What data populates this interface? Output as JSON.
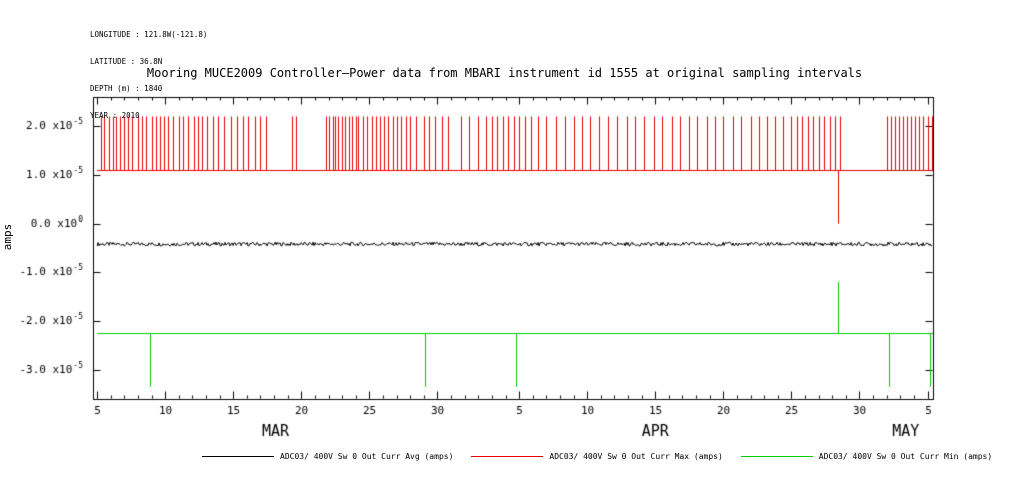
{
  "header_info": {
    "lines": [
      "LONGITUDE : 121.8W(-121.8)",
      "LATITUDE : 36.8N",
      "DEPTH (m) : 1840",
      "YEAR : 2010"
    ]
  },
  "title": "Mooring MUCE2009 Controller—Power data from MBARI instrument id 1555 at original sampling intervals",
  "chart_data": {
    "type": "line",
    "title": "Mooring MUCE2009 Controller—Power data from MBARI instrument id 1555 at original sampling intervals",
    "ylabel": "amps",
    "grid": false,
    "legend_position": "bottom",
    "ylim": [
      -3.6e-05,
      2.6e-05
    ],
    "xlim_days": [
      -0.3,
      61.4
    ],
    "x_unit": "days since Mar 5, 2010",
    "minor_tick_interval_days": 1,
    "yticks": [
      {
        "value": 2e-05,
        "mantissa": "2.0 x10",
        "exp": "-5"
      },
      {
        "value": 1e-05,
        "mantissa": "1.0 x10",
        "exp": "-5"
      },
      {
        "value": 0.0,
        "mantissa": "0.0 x10",
        "exp": "0"
      },
      {
        "value": -1e-05,
        "mantissa": "-1.0 x10",
        "exp": "-5"
      },
      {
        "value": -2e-05,
        "mantissa": "-2.0 x10",
        "exp": "-5"
      },
      {
        "value": -3e-05,
        "mantissa": "-3.0 x10",
        "exp": "-5"
      }
    ],
    "xticks": [
      {
        "day": 0,
        "label": "5"
      },
      {
        "day": 5,
        "label": "10"
      },
      {
        "day": 10,
        "label": "15"
      },
      {
        "day": 15,
        "label": "20"
      },
      {
        "day": 20,
        "label": "25"
      },
      {
        "day": 25,
        "label": "30"
      },
      {
        "day": 31,
        "label": "5"
      },
      {
        "day": 36,
        "label": "10"
      },
      {
        "day": 41,
        "label": "15"
      },
      {
        "day": 46,
        "label": "20"
      },
      {
        "day": 51,
        "label": "25"
      },
      {
        "day": 56,
        "label": "30"
      },
      {
        "day": 61,
        "label": "5"
      }
    ],
    "month_labels": [
      {
        "day": 13.1,
        "label": "MAR"
      },
      {
        "day": 41.0,
        "label": "APR"
      },
      {
        "day": 59.4,
        "label": "MAY"
      }
    ],
    "series": [
      {
        "name": "ADC03/ 400V Sw 0 Out Curr Avg (amps)",
        "color": "#000000",
        "style": "noisy-constant",
        "baseline": -4.2e-06,
        "noise_amplitude": 4e-07
      },
      {
        "name": "ADC03/ 400V Sw 0 Out Curr Max (amps)",
        "color": "#e60000",
        "style": "baseline-spikes",
        "baseline": 1.1e-05,
        "spike_value": 2.2e-05,
        "spike_days": [
          0.3,
          0.5,
          0.9,
          1.2,
          1.4,
          1.7,
          2.0,
          2.3,
          2.6,
          3.0,
          3.3,
          3.6,
          4.0,
          4.3,
          4.6,
          4.9,
          5.2,
          5.6,
          6.0,
          6.3,
          6.7,
          7.1,
          7.4,
          7.7,
          8.1,
          8.5,
          8.9,
          9.3,
          9.8,
          10.3,
          10.7,
          11.1,
          11.6,
          12.0,
          12.4,
          14.3,
          14.6,
          16.8,
          17.0,
          17.3,
          17.5,
          17.7,
          18.0,
          18.2,
          18.5,
          18.7,
          19.0,
          19.2,
          19.5,
          19.8,
          20.2,
          20.5,
          20.8,
          21.1,
          21.4,
          21.7,
          22.0,
          22.3,
          22.7,
          23.0,
          23.4,
          24.0,
          24.4,
          24.8,
          25.3,
          25.8,
          26.7,
          27.3,
          28.0,
          28.6,
          29.0,
          29.4,
          29.8,
          30.2,
          30.6,
          31.0,
          31.4,
          31.9,
          32.4,
          33.0,
          33.7,
          34.4,
          35.0,
          35.6,
          36.2,
          36.9,
          37.5,
          38.2,
          38.9,
          39.5,
          40.2,
          40.9,
          41.5,
          42.2,
          42.8,
          43.5,
          44.1,
          44.8,
          45.4,
          46.0,
          46.7,
          47.3,
          48.0,
          48.6,
          49.2,
          49.8,
          50.4,
          51.0,
          51.4,
          51.8,
          52.2,
          52.6,
          53.0,
          53.4,
          53.8,
          54.2,
          54.6,
          58.0,
          58.3,
          58.6,
          58.9,
          59.2,
          59.5,
          59.8,
          60.1,
          60.4,
          60.7,
          61.0,
          61.3
        ],
        "extra_spikes": [
          {
            "day": 54.4,
            "value": 0.0
          }
        ]
      },
      {
        "name": "ADC03/ 400V Sw 0 Out Curr Min (amps)",
        "color": "#00cc00",
        "style": "baseline-spikes",
        "baseline": -2.25e-05,
        "spike_value": -3.35e-05,
        "spike_days": [
          3.9,
          24.1,
          30.8,
          58.2,
          61.2
        ],
        "extra_spikes": [
          {
            "day": 54.4,
            "value": -1.2e-05
          }
        ]
      }
    ]
  },
  "legend": {
    "items": [
      {
        "label": "ADC03/ 400V Sw 0 Out Curr Avg (amps)",
        "color": "#000000"
      },
      {
        "label": "ADC03/ 400V Sw 0 Out Curr Max (amps)",
        "color": "#e60000"
      },
      {
        "label": "ADC03/ 400V Sw 0 Out Curr Min (amps)",
        "color": "#00cc00"
      }
    ]
  }
}
